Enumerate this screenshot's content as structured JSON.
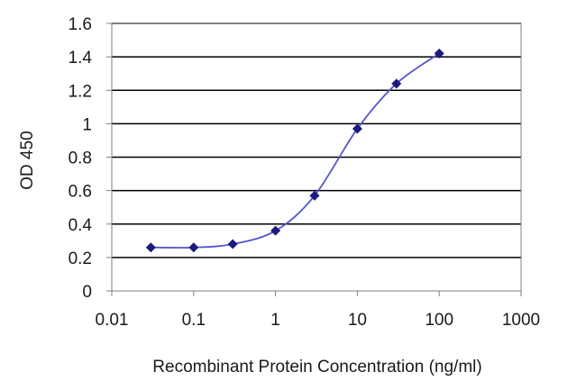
{
  "chart_data": {
    "type": "line",
    "xlabel": "Recombinant Protein Concentration (ng/ml)",
    "ylabel": "OD 450",
    "x_scale": "log",
    "xlim": [
      0.01,
      1000
    ],
    "ylim": [
      0,
      1.6
    ],
    "x_ticks": [
      "0.01",
      "0.1",
      "1",
      "10",
      "100",
      "1000"
    ],
    "y_ticks": [
      "0",
      "0.2",
      "0.4",
      "0.6",
      "0.8",
      "1",
      "1.2",
      "1.4",
      "1.6"
    ],
    "grid": "horizontal",
    "series": [
      {
        "x": [
          0.03,
          0.1,
          0.3,
          1,
          3,
          10,
          30,
          100
        ],
        "y": [
          0.26,
          0.26,
          0.28,
          0.36,
          0.57,
          0.97,
          1.24,
          1.42
        ]
      }
    ],
    "colors": {
      "line": "#5555cc",
      "marker": "#1a1a80",
      "grid": "#000000",
      "plot_border": "#808080"
    }
  }
}
